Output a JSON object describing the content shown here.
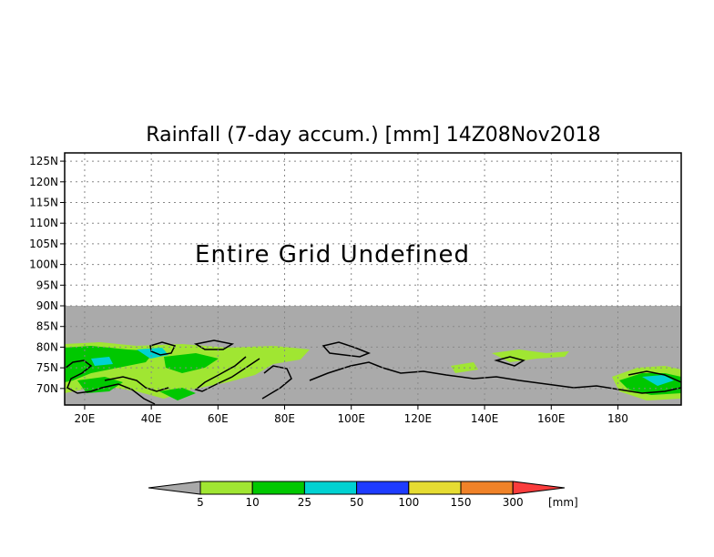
{
  "title": "Rainfall (7-day accum.) [mm] 14Z08Nov2018",
  "overlay_text": "Entire Grid Undefined",
  "map": {
    "lon_range": [
      14,
      199
    ],
    "lat_range": [
      66,
      127
    ],
    "data_top_lat": 90,
    "lon_ticks": [
      {
        "v": 20,
        "label": "20E"
      },
      {
        "v": 40,
        "label": "40E"
      },
      {
        "v": 60,
        "label": "60E"
      },
      {
        "v": 80,
        "label": "80E"
      },
      {
        "v": 100,
        "label": "100E"
      },
      {
        "v": 120,
        "label": "120E"
      },
      {
        "v": 140,
        "label": "140E"
      },
      {
        "v": 160,
        "label": "160E"
      },
      {
        "v": 180,
        "label": "180"
      }
    ],
    "lat_ticks": [
      {
        "v": 70,
        "label": "70N"
      },
      {
        "v": 75,
        "label": "75N"
      },
      {
        "v": 80,
        "label": "80N"
      },
      {
        "v": 85,
        "label": "85N"
      },
      {
        "v": 90,
        "label": "90N"
      },
      {
        "v": 95,
        "label": "95N"
      },
      {
        "v": 100,
        "label": "100N"
      },
      {
        "v": 105,
        "label": "105N"
      },
      {
        "v": 110,
        "label": "110N"
      },
      {
        "v": 115,
        "label": "115N"
      },
      {
        "v": 120,
        "label": "120N"
      },
      {
        "v": 125,
        "label": "125N"
      }
    ],
    "undefined_color": "#aaaaaa"
  },
  "colorbar": {
    "unit_label": "[mm]",
    "below_color": "#a9a9a9",
    "bins": [
      {
        "color": "#a0e632"
      },
      {
        "color": "#00c800"
      },
      {
        "color": "#00d2d2"
      },
      {
        "color": "#1e3cff"
      },
      {
        "color": "#e6dc32"
      },
      {
        "color": "#f08228"
      }
    ],
    "above_color": "#fa3c3c",
    "labels": [
      "5",
      "10",
      "25",
      "50",
      "100",
      "150",
      "300"
    ]
  }
}
